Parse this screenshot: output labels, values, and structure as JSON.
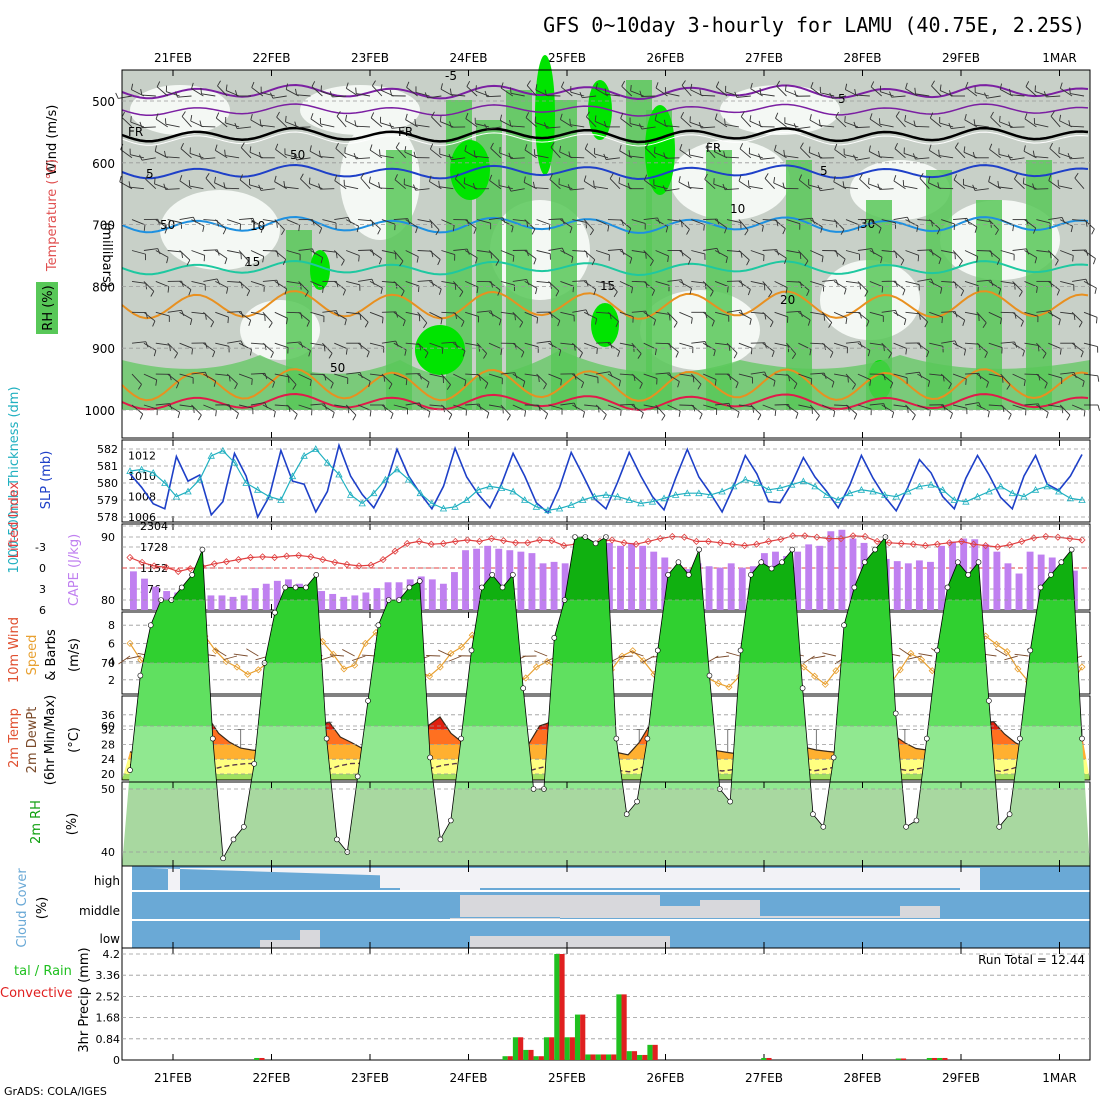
{
  "title": "GFS 0~10day 3-hourly for LAMU (40.75E, 2.25S)",
  "footer": "GrADS: COLA/IGES",
  "date_labels": [
    "21FEB",
    "22FEB",
    "23FEB",
    "24FEB",
    "25FEB",
    "26FEB",
    "27FEB",
    "28FEB",
    "29FEB",
    "1MAR"
  ],
  "colors": {
    "barb": "#333333",
    "temp_purple": "#7b1fa2",
    "temp_blue": "#1e40c8",
    "temp_lightblue": "#1e90e0",
    "temp_teal": "#1ec8a0",
    "temp_orange": "#e89020",
    "temp_red": "#e01a4a",
    "rh_green": "#00e400",
    "rh_mid": "#58c858",
    "rh_grey": "#c8d0c8",
    "cloud_blue": "#6aa9d6",
    "cloud_white": "#f2f2f6",
    "cloud_grey": "#d8d8dc"
  },
  "chart_data": [
    {
      "type": "heatmap",
      "name": "upper-air cross-section",
      "ylabel": "(millibars)",
      "yticks": [
        "500",
        "600",
        "700",
        "800",
        "900",
        "1000"
      ],
      "side_labels": {
        "wind": "Wind (m/s)",
        "temp": "Temperature (°C)",
        "rh": "RH (%)"
      },
      "contour_labels": [
        "-5",
        "FR",
        "5",
        "10",
        "15",
        "20",
        "30",
        "50",
        "70"
      ]
    },
    {
      "type": "line",
      "name": "SLP & thickness",
      "ylabel_left": "1000-500mb Thickness (dm)",
      "ylabel_right": "SLP (mb)",
      "yticks_left": [
        "578",
        "579",
        "580",
        "581",
        "582"
      ],
      "yticks_right": [
        "1006",
        "1008",
        "1010",
        "1012"
      ],
      "series": [
        {
          "name": "SLP (mb)",
          "values": [
            1010.2,
            1008.9,
            1007.3,
            1006.8,
            1011.9,
            1009.5,
            1010.1,
            1006.2,
            1007.5,
            1012.2,
            1010.0,
            1006.0,
            1008.0,
            1012.5,
            1009.5,
            1009.2,
            1006.5,
            1008.5,
            1013.0,
            1010.0,
            1008.2,
            1006.9,
            1009.0,
            1012.6,
            1010.0,
            1008.3,
            1006.8,
            1009.0,
            1012.7,
            1009.9,
            1008.2,
            1006.9,
            1009.2,
            1012.2,
            1010.0,
            1007.4,
            1006.4,
            1008.9,
            1012.3,
            1010.1,
            1007.8,
            1006.8,
            1009.4,
            1012.3,
            1010.0,
            1008.0,
            1006.7,
            1009.8,
            1012.6,
            1009.9,
            1008.3,
            1006.5,
            1009.0,
            1012.0,
            1010.2,
            1007.5,
            1007.4,
            1009.3,
            1011.8,
            1009.9,
            1008.5,
            1006.9,
            1009.1,
            1012.0,
            1009.8,
            1008.0,
            1006.6,
            1008.9,
            1011.6,
            1010.3,
            1008.0,
            1006.8,
            1009.8,
            1012.0,
            1010.1,
            1007.9,
            1006.8,
            1010.0,
            1012.0,
            1009.2,
            1008.6,
            1010.0,
            1012.1
          ]
        },
        {
          "name": "1000-500mb Thickness (dm)",
          "values": [
            580.7,
            580.8,
            580.6,
            580.0,
            579.2,
            579.5,
            580.2,
            581.6,
            581.9,
            581.2,
            580.0,
            579.6,
            579.2,
            579.0,
            580.4,
            581.6,
            582.0,
            581.2,
            580.5,
            579.3,
            578.8,
            579.4,
            580.2,
            580.8,
            580.2,
            579.4,
            578.8,
            578.5,
            578.6,
            579.0,
            579.6,
            579.8,
            579.7,
            579.5,
            579.0,
            578.6,
            578.4,
            578.5,
            578.7,
            579.0,
            579.2,
            579.3,
            579.2,
            579.0,
            578.8,
            578.9,
            579.1,
            579.3,
            579.4,
            579.4,
            579.3,
            579.5,
            579.8,
            580.2,
            580.0,
            579.6,
            579.7,
            579.9,
            580.1,
            579.8,
            579.3,
            579.0,
            579.4,
            579.6,
            579.5,
            579.3,
            579.2,
            579.5,
            579.8,
            579.9,
            579.6,
            579.0,
            578.9,
            579.2,
            579.5,
            579.8,
            579.4,
            579.2,
            579.6,
            579.8,
            579.5,
            579.1,
            579.0
          ]
        }
      ]
    },
    {
      "type": "bar",
      "name": "CAPE & Lifted Index",
      "ylabel_left": "Lifted Index",
      "ylabel_right": "CAPE (J/kg)",
      "yticks_left": [
        "-3",
        "0",
        "3",
        "6"
      ],
      "yticks_right": [
        "576",
        "1152",
        "1728",
        "2304"
      ],
      "series": [
        {
          "name": "CAPE (J/kg)",
          "values": [
            1060,
            860,
            640,
            520,
            480,
            360,
            360,
            400,
            400,
            360,
            400,
            600,
            720,
            800,
            840,
            720,
            640,
            520,
            440,
            360,
            400,
            480,
            600,
            760,
            760,
            840,
            920,
            840,
            720,
            1040,
            1640,
            1680,
            1760,
            1680,
            1640,
            1600,
            1560,
            1280,
            1320,
            1280,
            1320,
            1320,
            1320,
            1840,
            1760,
            1840,
            1760,
            1600,
            1440,
            1000,
            1120,
            1280,
            1200,
            1160,
            1280,
            1160,
            1200,
            1560,
            1600,
            1480,
            1600,
            1800,
            1760,
            2160,
            2200,
            1960,
            1840,
            1440,
            1400,
            1340,
            1280,
            1360,
            1320,
            1760,
            1880,
            1960,
            1940,
            1800,
            1600,
            1280,
            1000,
            1600,
            1520,
            1440,
            1240,
            1080
          ]
        },
        {
          "name": "Lifted Index",
          "values": [
            -1.5,
            -0.8,
            -0.3,
            -0.1,
            0.5,
            0.1,
            -0.2,
            -0.6,
            -0.9,
            -1.2,
            -1.5,
            -1.6,
            -1.5,
            -1.7,
            -1.8,
            -1.6,
            -1.2,
            -0.8,
            -0.5,
            -0.3,
            -0.4,
            -1.2,
            -2.4,
            -3.5,
            -3.8,
            -3.4,
            -3.5,
            -3.8,
            -4.0,
            -3.8,
            -4.2,
            -3.9,
            -3.6,
            -3.6,
            -4.0,
            -3.9,
            -3.2,
            -3.4,
            -3.5,
            -3.8,
            -4.0,
            -3.6,
            -3.4,
            -3.8,
            -4.2,
            -4.5,
            -4.4,
            -3.8,
            -3.8,
            -3.6,
            -3.4,
            -3.2,
            -3.4,
            -3.8,
            -4.1,
            -4.6,
            -4.6,
            -4.4,
            -4.2,
            -4.2,
            -4.6,
            -4.5,
            -3.8,
            -3.6,
            -3.5,
            -3.4,
            -3.2,
            -3.4,
            -3.6,
            -3.8,
            -3.4,
            -3.2,
            -3.0,
            -3.3,
            -3.8,
            -4.3,
            -4.5,
            -4.4,
            -4.2,
            -4.0
          ]
        }
      ]
    },
    {
      "type": "line",
      "name": "10m wind",
      "ylabel": "10m Wind Speed & Barbs (m/s)",
      "yticks": [
        "2",
        "4",
        "6",
        "8"
      ],
      "series": [
        {
          "name": "Speed (m/s)",
          "values": [
            6.0,
            4.2,
            3.2,
            2.6,
            1.9,
            2.8,
            4.8,
            6.8,
            5.2,
            4.0,
            3.4,
            2.6,
            3.1,
            4.0,
            5.4,
            7.6,
            8.4,
            7.8,
            6.2,
            4.8,
            3.2,
            3.6,
            6.0,
            7.2,
            6.0,
            4.6,
            3.6,
            2.9,
            2.4,
            3.4,
            4.9,
            5.6,
            6.9,
            4.2,
            2.0,
            1.6,
            1.8,
            2.2,
            3.4,
            4.0,
            3.1,
            1.8,
            1.3,
            1.2,
            2.1,
            3.1,
            4.6,
            5.2,
            4.1,
            2.6,
            1.9,
            2.8,
            3.3,
            4.1,
            2.2,
            1.6,
            1.2,
            2.4,
            3.4,
            5.2,
            4.2,
            3.2,
            4.4,
            3.4,
            2.4,
            1.5,
            3.0,
            4.6,
            3.8,
            2.5,
            2.2,
            1.4,
            3.1,
            4.9,
            4.2,
            3.0,
            2.6,
            1.0,
            2.4,
            6.0,
            6.8,
            5.9,
            5.1,
            3.2,
            1.8,
            3.4,
            4.2,
            2.1,
            1.6,
            3.4
          ]
        }
      ]
    },
    {
      "type": "area",
      "name": "2m temperature",
      "ylabel": "2m Temp 2m DewPt (6hr Min/Max) (°C)",
      "yticks": [
        "20",
        "24",
        "28",
        "32",
        "36"
      ],
      "series": [
        {
          "name": "2m Temp",
          "values": [
            26.0,
            25.3,
            25.0,
            24.9,
            24.5,
            27.0,
            32.5,
            35.5,
            31.0,
            28.6,
            27.0,
            26.5,
            26.1,
            26.0,
            25.3,
            24.9,
            27.2,
            33.0,
            34.0,
            30.0,
            28.5,
            26.9,
            26.5,
            26.0,
            25.5,
            25.2,
            27.6,
            33.2,
            35.4,
            31.0,
            28.6,
            27.2,
            26.7,
            26.5,
            26.0,
            25.3,
            28.0,
            33.0,
            34.0,
            29.8,
            27.5,
            26.8,
            26.5,
            26.2,
            25.8,
            25.2,
            28.5,
            33.5,
            34.5,
            31.0,
            28.5,
            27.1,
            26.6,
            26.3,
            25.8,
            25.4,
            28.5,
            33.7,
            34.1,
            30.8,
            28.6,
            27.2,
            26.5,
            26.1,
            25.8,
            25.3,
            28.5,
            33.6,
            34.5,
            30.5,
            28.4,
            26.9,
            26.5,
            26.2,
            25.6,
            25.0,
            28.5,
            33.5,
            34.2,
            30.8,
            28.4,
            27.0,
            26.5,
            26.0,
            25.3,
            24.8,
            30.5
          ]
        },
        {
          "name": "2m DewPt",
          "values": [
            22.5,
            22.8,
            22.6,
            22.0,
            21.5,
            21.0,
            20.4,
            21.2,
            22.0,
            22.5,
            22.8,
            22.8,
            22.6,
            22.2,
            21.6,
            21.0,
            20.2,
            21.2,
            22.2,
            22.8,
            22.9,
            22.6,
            22.0,
            21.5,
            20.8,
            20.4,
            21.6,
            22.4,
            22.8,
            22.9,
            22.7,
            22.2,
            21.6,
            21.1,
            20.5,
            21.4,
            22.2,
            22.8,
            22.9,
            22.8,
            22.4,
            21.7,
            21.0,
            20.6,
            21.7,
            22.3,
            22.8,
            22.9,
            22.6,
            22.0,
            21.4,
            20.8,
            21.2,
            22.0,
            22.6,
            22.8,
            22.6,
            22.0,
            21.4,
            20.9,
            21.4,
            22.1,
            22.6,
            22.8,
            22.6,
            22.1,
            21.5,
            20.9,
            21.5,
            22.2,
            22.7,
            22.9,
            22.6,
            22.0,
            21.3,
            20.7,
            21.5,
            22.4,
            22.8,
            22.6,
            22.2,
            21.5,
            21.0
          ]
        }
      ]
    },
    {
      "type": "area",
      "name": "2m RH",
      "ylabel": "2m RH (%)",
      "yticks": [
        "40",
        "50",
        "60",
        "70",
        "80",
        "90"
      ],
      "series": [
        {
          "name": "2m RH",
          "values": [
            53,
            68,
            76,
            80,
            80,
            82,
            84,
            88,
            58,
            39,
            42,
            44,
            54,
            70,
            78,
            82,
            82,
            82,
            84,
            58,
            42,
            40,
            52,
            64,
            76,
            80,
            80,
            82,
            83,
            55,
            42,
            45,
            58,
            72,
            82,
            84,
            82,
            84,
            66,
            50,
            50,
            74,
            80,
            90,
            90,
            89,
            90,
            58,
            46,
            48,
            58,
            72,
            84,
            86,
            84,
            88,
            68,
            50,
            48,
            72,
            84,
            86,
            85,
            86,
            88,
            66,
            46,
            44,
            55,
            76,
            82,
            86,
            88,
            90,
            62,
            44,
            45,
            58,
            72,
            82,
            86,
            84,
            86,
            64,
            44,
            46,
            58,
            72,
            82,
            84,
            86,
            88,
            58
          ]
        }
      ]
    },
    {
      "type": "table",
      "name": "cloud cover",
      "ylabel": "Cloud Cover (%)",
      "rows": [
        "high",
        "middle",
        "low"
      ]
    },
    {
      "type": "bar",
      "name": "3hr precipitation",
      "ylabel_left": "Total / Rain Convective",
      "ylabel_right": "3hr Precip (mm)",
      "yticks": [
        "0",
        "0.84",
        "1.68",
        "2.52",
        "3.36",
        "4.2"
      ],
      "run_total": "Run Total = 12.44",
      "series": [
        {
          "name": "Total",
          "values": [
            0,
            0,
            0,
            0,
            0,
            0,
            0,
            0,
            0,
            0,
            0,
            0,
            0.08,
            0,
            0,
            0,
            0,
            0,
            0,
            0,
            0,
            0,
            0,
            0,
            0,
            0,
            0,
            0,
            0,
            0,
            0,
            0,
            0,
            0,
            0,
            0,
            0.15,
            0.9,
            0.4,
            0.15,
            0.9,
            4.2,
            0.9,
            1.8,
            0.22,
            0.22,
            0.22,
            2.6,
            0.35,
            0.2,
            0.6,
            0,
            0,
            0,
            0,
            0,
            0,
            0,
            0,
            0,
            0,
            0.08,
            0,
            0,
            0,
            0,
            0,
            0,
            0,
            0,
            0,
            0,
            0,
            0,
            0.06,
            0,
            0,
            0.08,
            0.08,
            0,
            0,
            0,
            0,
            0,
            0,
            0,
            0,
            0,
            0,
            0,
            0,
            0
          ]
        }
      ]
    }
  ]
}
